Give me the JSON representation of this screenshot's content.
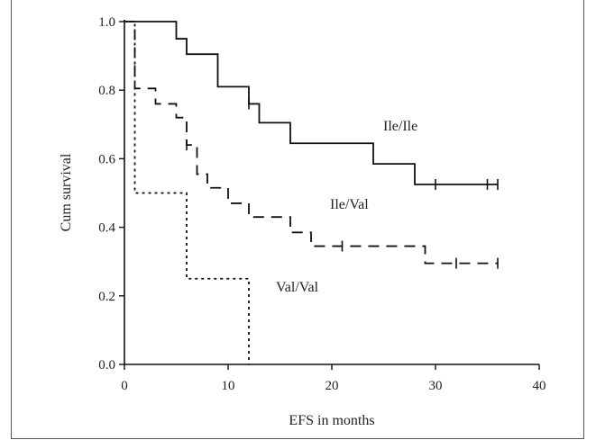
{
  "chart_data": {
    "type": "line",
    "subtype": "kaplan-meier step",
    "title": "",
    "xlabel": "EFS in months",
    "ylabel": "Cum survival",
    "xlim": [
      0,
      40
    ],
    "ylim": [
      0,
      1.0
    ],
    "xticks": [
      "0",
      "10",
      "20",
      "30",
      "40"
    ],
    "yticks": [
      "0.0",
      "0.2",
      "0.4",
      "0.6",
      "0.8",
      "1.0"
    ],
    "grid": false,
    "series": [
      {
        "name": "Ile/Ile",
        "linestyle": "solid",
        "x": [
          0,
          5,
          6,
          9,
          12,
          13,
          16,
          24,
          28,
          36
        ],
        "y": [
          1.0,
          0.95,
          0.905,
          0.81,
          0.76,
          0.705,
          0.645,
          0.585,
          0.525,
          0.525
        ],
        "censored": [
          [
            12,
            0.76
          ],
          [
            30,
            0.525
          ],
          [
            35,
            0.525
          ],
          [
            36,
            0.525
          ]
        ]
      },
      {
        "name": "Ile/Val",
        "linestyle": "dashed",
        "x": [
          0,
          1,
          3,
          5,
          6,
          7,
          8,
          10,
          12,
          16,
          18,
          29,
          36
        ],
        "y": [
          1.0,
          0.805,
          0.76,
          0.72,
          0.64,
          0.555,
          0.515,
          0.47,
          0.43,
          0.385,
          0.345,
          0.295,
          0.295
        ],
        "censored": [
          [
            6,
            0.64
          ],
          [
            21,
            0.345
          ],
          [
            32,
            0.295
          ],
          [
            36,
            0.295
          ]
        ]
      },
      {
        "name": "Val/Val",
        "linestyle": "dotted",
        "x": [
          0,
          1,
          6,
          12
        ],
        "y": [
          1.0,
          0.5,
          0.25,
          0.0
        ],
        "censored": []
      }
    ]
  }
}
